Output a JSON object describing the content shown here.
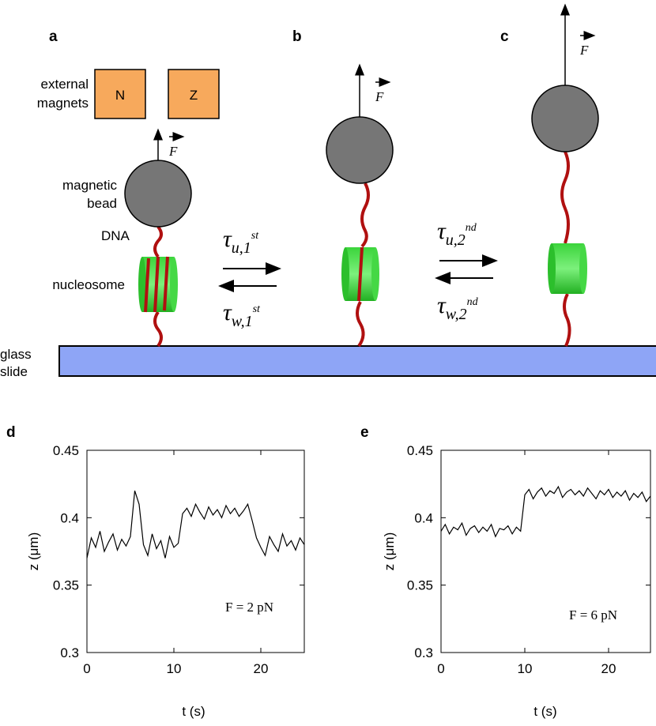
{
  "diagram": {
    "panels": [
      "a",
      "b",
      "c"
    ],
    "magnets_label": [
      "external",
      "magnets"
    ],
    "magnet_poles": [
      "N",
      "Z"
    ],
    "bead_label": [
      "magnetic",
      "bead"
    ],
    "dna_label": "DNA",
    "nucleosome_label": "nucleosome",
    "slide_label": [
      "glass",
      "slide"
    ],
    "force": "F",
    "rates": [
      {
        "sym": "τ",
        "sub": "u,1",
        "sup": "st"
      },
      {
        "sym": "τ",
        "sub": "w,1",
        "sup": "st"
      },
      {
        "sym": "τ",
        "sub": "u,2",
        "sup": "nd"
      },
      {
        "sym": "τ",
        "sub": "w,2",
        "sup": "nd"
      }
    ]
  },
  "chart_data": [
    {
      "type": "line",
      "panel": "d",
      "annotation": "F = 2 pN",
      "x_label": "t (s)",
      "y_label": "z (μm)",
      "color": "#000000",
      "x": [
        0,
        0.5,
        1,
        1.5,
        2,
        2.5,
        3,
        3.5,
        4,
        4.5,
        5,
        5.5,
        6,
        6.5,
        7,
        7.5,
        8,
        8.5,
        9,
        9.5,
        10,
        10.5,
        11,
        11.5,
        12,
        12.5,
        13,
        13.5,
        14,
        14.5,
        15,
        15.5,
        16,
        16.5,
        17,
        17.5,
        18,
        18.5,
        19,
        19.5,
        20,
        20.5,
        21,
        21.5,
        22,
        22.5,
        23,
        23.5,
        24,
        24.5,
        25
      ],
      "values": [
        0.37,
        0.385,
        0.378,
        0.39,
        0.375,
        0.382,
        0.388,
        0.376,
        0.384,
        0.379,
        0.386,
        0.42,
        0.41,
        0.38,
        0.372,
        0.388,
        0.377,
        0.383,
        0.37,
        0.386,
        0.378,
        0.381,
        0.403,
        0.407,
        0.401,
        0.41,
        0.404,
        0.399,
        0.408,
        0.402,
        0.406,
        0.4,
        0.409,
        0.403,
        0.407,
        0.401,
        0.405,
        0.41,
        0.398,
        0.385,
        0.378,
        0.372,
        0.386,
        0.38,
        0.375,
        0.388,
        0.379,
        0.383,
        0.376,
        0.385,
        0.38
      ],
      "xlim": [
        0,
        25
      ],
      "ylim": [
        0.3,
        0.45
      ],
      "xticks": [
        0,
        10,
        20
      ],
      "yticks": [
        0.3,
        0.35,
        0.4,
        0.45
      ]
    },
    {
      "type": "line",
      "panel": "e",
      "annotation": "F = 6 pN",
      "x_label": "t (s)",
      "y_label": "z (μm)",
      "color": "#000000",
      "x": [
        0,
        0.5,
        1,
        1.5,
        2,
        2.5,
        3,
        3.5,
        4,
        4.5,
        5,
        5.5,
        6,
        6.5,
        7,
        7.5,
        8,
        8.5,
        9,
        9.5,
        10,
        10.5,
        11,
        11.5,
        12,
        12.5,
        13,
        13.5,
        14,
        14.5,
        15,
        15.5,
        16,
        16.5,
        17,
        17.5,
        18,
        18.5,
        19,
        19.5,
        20,
        20.5,
        21,
        21.5,
        22,
        22.5,
        23,
        23.5,
        24,
        24.5,
        25
      ],
      "values": [
        0.39,
        0.395,
        0.388,
        0.393,
        0.391,
        0.396,
        0.387,
        0.392,
        0.394,
        0.389,
        0.393,
        0.39,
        0.395,
        0.386,
        0.392,
        0.391,
        0.394,
        0.388,
        0.393,
        0.39,
        0.417,
        0.421,
        0.414,
        0.419,
        0.422,
        0.416,
        0.42,
        0.418,
        0.423,
        0.415,
        0.419,
        0.421,
        0.417,
        0.42,
        0.416,
        0.422,
        0.418,
        0.414,
        0.42,
        0.417,
        0.421,
        0.415,
        0.419,
        0.416,
        0.42,
        0.413,
        0.418,
        0.415,
        0.419,
        0.412,
        0.416
      ],
      "xlim": [
        0,
        25
      ],
      "ylim": [
        0.3,
        0.45
      ],
      "xticks": [
        0,
        10,
        20
      ],
      "yticks": [
        0.3,
        0.35,
        0.4,
        0.45
      ]
    }
  ]
}
